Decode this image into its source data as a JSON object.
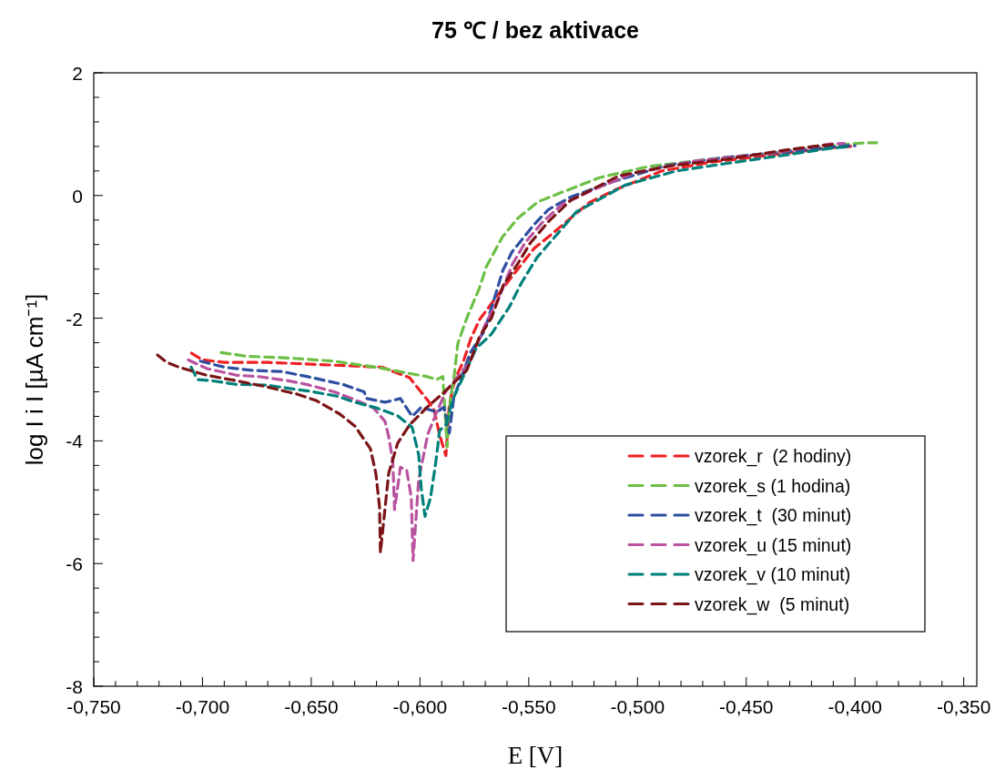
{
  "chart_data": {
    "type": "line",
    "title": "75 ℃ / bez aktivace",
    "xlabel": "E [V]",
    "ylabel": "log I i I [µA cm⁻¹]",
    "xlim": [
      -0.75,
      -0.344
    ],
    "ylim": [
      -8,
      2
    ],
    "xticks": [
      {
        "value": -0.75,
        "label": "-0,750"
      },
      {
        "value": -0.74,
        "label": null
      },
      {
        "value": -0.73,
        "label": null
      },
      {
        "value": -0.72,
        "label": null
      },
      {
        "value": -0.71,
        "label": null
      },
      {
        "value": -0.7,
        "label": "-0,700"
      },
      {
        "value": -0.69,
        "label": null
      },
      {
        "value": -0.68,
        "label": null
      },
      {
        "value": -0.67,
        "label": null
      },
      {
        "value": -0.66,
        "label": null
      },
      {
        "value": -0.65,
        "label": "-0,650"
      },
      {
        "value": -0.64,
        "label": null
      },
      {
        "value": -0.63,
        "label": null
      },
      {
        "value": -0.62,
        "label": null
      },
      {
        "value": -0.61,
        "label": null
      },
      {
        "value": -0.6,
        "label": "-0,600"
      },
      {
        "value": -0.59,
        "label": null
      },
      {
        "value": -0.58,
        "label": null
      },
      {
        "value": -0.57,
        "label": null
      },
      {
        "value": -0.56,
        "label": null
      },
      {
        "value": -0.55,
        "label": "-0,550"
      },
      {
        "value": -0.54,
        "label": null
      },
      {
        "value": -0.53,
        "label": null
      },
      {
        "value": -0.52,
        "label": null
      },
      {
        "value": -0.51,
        "label": null
      },
      {
        "value": -0.5,
        "label": "-0,500"
      },
      {
        "value": -0.49,
        "label": null
      },
      {
        "value": -0.48,
        "label": null
      },
      {
        "value": -0.47,
        "label": null
      },
      {
        "value": -0.46,
        "label": null
      },
      {
        "value": -0.45,
        "label": "-0,450"
      },
      {
        "value": -0.44,
        "label": null
      },
      {
        "value": -0.43,
        "label": null
      },
      {
        "value": -0.42,
        "label": null
      },
      {
        "value": -0.41,
        "label": null
      },
      {
        "value": -0.4,
        "label": "-0,400"
      },
      {
        "value": -0.39,
        "label": null
      },
      {
        "value": -0.38,
        "label": null
      },
      {
        "value": -0.37,
        "label": null
      },
      {
        "value": -0.36,
        "label": null
      },
      {
        "value": -0.35,
        "label": "-0,350"
      }
    ],
    "yticks": [
      -8,
      {
        "value": -7.6,
        "label": null
      },
      {
        "value": -7.2,
        "label": null
      },
      {
        "value": -6.8,
        "label": null
      },
      {
        "value": -6.4,
        "label": null
      },
      -6,
      {
        "value": -5.6,
        "label": null
      },
      {
        "value": -5.2,
        "label": null
      },
      {
        "value": -4.8,
        "label": null
      },
      {
        "value": -4.4,
        "label": null
      },
      -4,
      {
        "value": -3.6,
        "label": null
      },
      {
        "value": -3.2,
        "label": null
      },
      {
        "value": -2.8,
        "label": null
      },
      {
        "value": -2.4,
        "label": null
      },
      -2,
      {
        "value": -1.6,
        "label": null
      },
      {
        "value": -1.2,
        "label": null
      },
      {
        "value": -0.8,
        "label": null
      },
      {
        "value": -0.4,
        "label": null
      },
      0,
      {
        "value": 0.4,
        "label": null
      },
      {
        "value": 0.8,
        "label": null
      },
      {
        "value": 1.2,
        "label": null
      },
      {
        "value": 1.6,
        "label": null
      },
      2
    ],
    "grid": false,
    "legend": "bottom right",
    "marker": "none",
    "line_style": "dashed",
    "series": [
      {
        "name": "vzorek_r  (2 hodiny)",
        "color": "#ee2024",
        "x": [
          -0.705,
          -0.7,
          -0.69,
          -0.67,
          -0.65,
          -0.63,
          -0.6174,
          -0.6048,
          -0.5964,
          -0.5935,
          -0.591,
          -0.5881,
          -0.5865,
          -0.584,
          -0.58,
          -0.5768,
          -0.5726,
          -0.5588,
          -0.5475,
          -0.5408,
          -0.5224,
          -0.5098,
          -0.4889,
          -0.4667,
          -0.4387,
          -0.4136,
          -0.402
        ],
        "values": [
          -2.57,
          -2.68,
          -2.72,
          -2.72,
          -2.75,
          -2.78,
          -2.8,
          -2.97,
          -3.34,
          -3.5,
          -3.9,
          -4.24,
          -3.4,
          -3.0,
          -2.7,
          -2.35,
          -2.02,
          -1.37,
          -0.86,
          -0.67,
          -0.12,
          0.1,
          0.4,
          0.54,
          0.66,
          0.77,
          0.8
        ]
      },
      {
        "name": "vzorek_s (1 hodina)",
        "color": "#6cbf45",
        "x": [
          -0.6914,
          -0.68,
          -0.66,
          -0.64,
          -0.62,
          -0.605,
          -0.597,
          -0.5923,
          -0.5895,
          -0.5875,
          -0.586,
          -0.5845,
          -0.5826,
          -0.5785,
          -0.5728,
          -0.5695,
          -0.562,
          -0.555,
          -0.5456,
          -0.5356,
          -0.5176,
          -0.4954,
          -0.4674,
          -0.4393,
          -0.4117,
          -0.395,
          -0.39
        ],
        "values": [
          -2.56,
          -2.62,
          -2.65,
          -2.7,
          -2.8,
          -2.9,
          -2.95,
          -3.0,
          -2.95,
          -4.1,
          -3.3,
          -3.0,
          -2.41,
          -2.0,
          -1.52,
          -1.16,
          -0.67,
          -0.37,
          -0.1,
          0.04,
          0.29,
          0.47,
          0.59,
          0.69,
          0.81,
          0.86,
          0.86
        ]
      },
      {
        "name": "vzorek_t  (30 minut)",
        "color": "#2e4fa1",
        "x": [
          -0.701,
          -0.6898,
          -0.6772,
          -0.6634,
          -0.6521,
          -0.6354,
          -0.6257,
          -0.6245,
          -0.6161,
          -0.609,
          -0.6036,
          -0.5994,
          -0.5923,
          -0.589,
          -0.5865,
          -0.5845,
          -0.5768,
          -0.5703,
          -0.5619,
          -0.5577,
          -0.5477,
          -0.541,
          -0.531,
          -0.5117,
          -0.4866,
          -0.4598,
          -0.4322,
          -0.4042,
          -0.4
        ],
        "values": [
          -2.7,
          -2.8,
          -2.85,
          -2.87,
          -2.95,
          -3.08,
          -3.2,
          -3.31,
          -3.37,
          -3.31,
          -3.6,
          -3.45,
          -3.53,
          -3.45,
          -3.87,
          -3.3,
          -2.56,
          -2.2,
          -1.22,
          -0.92,
          -0.48,
          -0.23,
          -0.03,
          0.22,
          0.49,
          0.62,
          0.71,
          0.81,
          0.81
        ]
      },
      {
        "name": "vzorek_u (15 minut)",
        "color": "#b9529f",
        "x": [
          -0.7065,
          -0.6981,
          -0.6843,
          -0.6747,
          -0.6605,
          -0.6521,
          -0.6395,
          -0.6312,
          -0.6215,
          -0.6161,
          -0.6144,
          -0.6125,
          -0.6117,
          -0.609,
          -0.6061,
          -0.604,
          -0.6032,
          -0.6006,
          -0.5964,
          -0.5923,
          -0.5881,
          -0.5768,
          -0.5701,
          -0.5642,
          -0.5575,
          -0.5517,
          -0.5433,
          -0.5349,
          -0.5199,
          -0.5015,
          -0.4738,
          -0.4387,
          -0.4111,
          -0.405
        ],
        "values": [
          -2.68,
          -2.82,
          -2.93,
          -2.95,
          -3.02,
          -3.08,
          -3.2,
          -3.31,
          -3.46,
          -3.68,
          -3.93,
          -4.33,
          -5.12,
          -4.43,
          -4.48,
          -4.93,
          -5.95,
          -4.63,
          -3.89,
          -3.53,
          -3.19,
          -2.7,
          -2.11,
          -1.71,
          -1.12,
          -0.77,
          -0.42,
          -0.15,
          0.1,
          0.37,
          0.56,
          0.69,
          0.84,
          0.85
        ]
      },
      {
        "name": "vzorek_v (10 minut)",
        "color": "#00807a",
        "x": [
          -0.7052,
          -0.7023,
          -0.6956,
          -0.6843,
          -0.6705,
          -0.6592,
          -0.6508,
          -0.6383,
          -0.6299,
          -0.6203,
          -0.6103,
          -0.6036,
          -0.6006,
          -0.5994,
          -0.5977,
          -0.5952,
          -0.5935,
          -0.5923,
          -0.591,
          -0.5881,
          -0.5851,
          -0.5743,
          -0.5672,
          -0.5588,
          -0.5533,
          -0.5462,
          -0.5391,
          -0.5282,
          -0.5056,
          -0.4822,
          -0.4596,
          -0.432,
          -0.4111,
          -0.402
        ],
        "values": [
          -2.8,
          -3.0,
          -3.02,
          -3.08,
          -3.09,
          -3.15,
          -3.19,
          -3.27,
          -3.37,
          -3.46,
          -3.59,
          -3.78,
          -4.23,
          -4.78,
          -5.23,
          -4.93,
          -4.53,
          -4.23,
          -3.83,
          -3.74,
          -3.34,
          -2.5,
          -2.26,
          -1.81,
          -1.42,
          -1.01,
          -0.72,
          -0.27,
          0.17,
          0.4,
          0.52,
          0.66,
          0.77,
          0.8
        ]
      },
      {
        "name": "vzorek_w  (5 minut)",
        "color": "#7b1416",
        "x": [
          -0.7207,
          -0.7165,
          -0.7107,
          -0.6981,
          -0.6843,
          -0.6705,
          -0.6563,
          -0.6479,
          -0.637,
          -0.6299,
          -0.6228,
          -0.6203,
          -0.6186,
          -0.6182,
          -0.6144,
          -0.6103,
          -0.6048,
          -0.5964,
          -0.5893,
          -0.5785,
          -0.5726,
          -0.5672,
          -0.5617,
          -0.5559,
          -0.5492,
          -0.5408,
          -0.5308,
          -0.5086,
          -0.4835,
          -0.4596,
          -0.432,
          -0.4165,
          -0.41
        ],
        "values": [
          -2.6,
          -2.72,
          -2.8,
          -2.93,
          -3.02,
          -3.12,
          -3.24,
          -3.34,
          -3.56,
          -3.76,
          -4.13,
          -4.53,
          -5.08,
          -5.82,
          -4.53,
          -4.04,
          -3.74,
          -3.44,
          -3.22,
          -2.85,
          -2.3,
          -2.0,
          -1.46,
          -1.16,
          -0.77,
          -0.42,
          -0.08,
          0.32,
          0.49,
          0.59,
          0.74,
          0.81,
          0.83
        ]
      }
    ]
  }
}
